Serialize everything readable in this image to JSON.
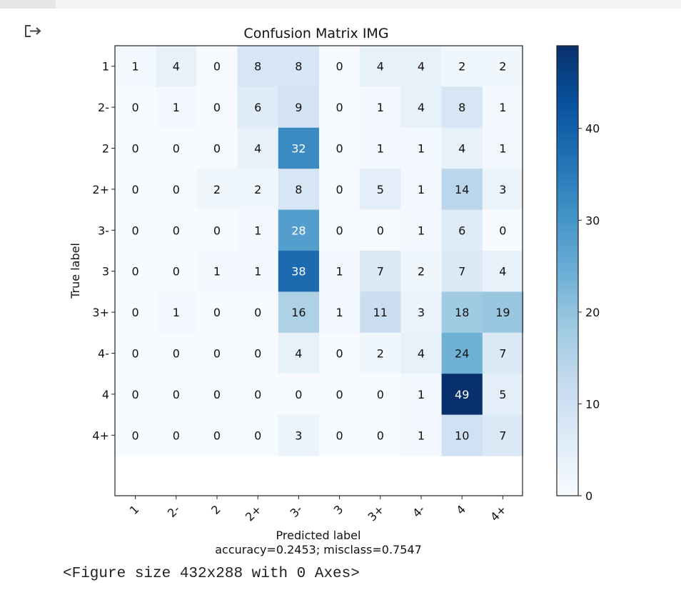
{
  "output": {
    "icon": "output-arrow-icon",
    "caption": "<Figure size 432x288 with 0 Axes>"
  },
  "chart_data": {
    "type": "heatmap",
    "title": "Confusion Matrix IMG",
    "xlabel": "Predicted label",
    "xlabel_note": "accuracy=0.2453; misclass=0.7547",
    "ylabel": "True label",
    "colormap": "Blues",
    "color_range": [
      0,
      49
    ],
    "colorbar_ticks": [
      0,
      10,
      20,
      30,
      40
    ],
    "x_categories": [
      "1",
      "2-",
      "2",
      "2+",
      "3-",
      "3",
      "3+",
      "4-",
      "4",
      "4+"
    ],
    "y_categories": [
      "1",
      "2-",
      "2",
      "2+",
      "3-",
      "3",
      "3+",
      "4-",
      "4",
      "4+"
    ],
    "matrix": [
      [
        1,
        4,
        0,
        8,
        8,
        0,
        4,
        4,
        2,
        2
      ],
      [
        0,
        1,
        0,
        6,
        9,
        0,
        1,
        4,
        8,
        1
      ],
      [
        0,
        0,
        0,
        4,
        32,
        0,
        1,
        1,
        4,
        1
      ],
      [
        0,
        0,
        2,
        2,
        8,
        0,
        5,
        1,
        14,
        3
      ],
      [
        0,
        0,
        0,
        1,
        28,
        0,
        0,
        1,
        6,
        0
      ],
      [
        0,
        0,
        1,
        1,
        38,
        1,
        7,
        2,
        7,
        4
      ],
      [
        0,
        1,
        0,
        0,
        16,
        1,
        11,
        3,
        18,
        19
      ],
      [
        0,
        0,
        0,
        0,
        4,
        0,
        2,
        4,
        24,
        7
      ],
      [
        0,
        0,
        0,
        0,
        0,
        0,
        0,
        1,
        49,
        5
      ],
      [
        0,
        0,
        0,
        0,
        3,
        0,
        0,
        1,
        10,
        7
      ]
    ]
  }
}
